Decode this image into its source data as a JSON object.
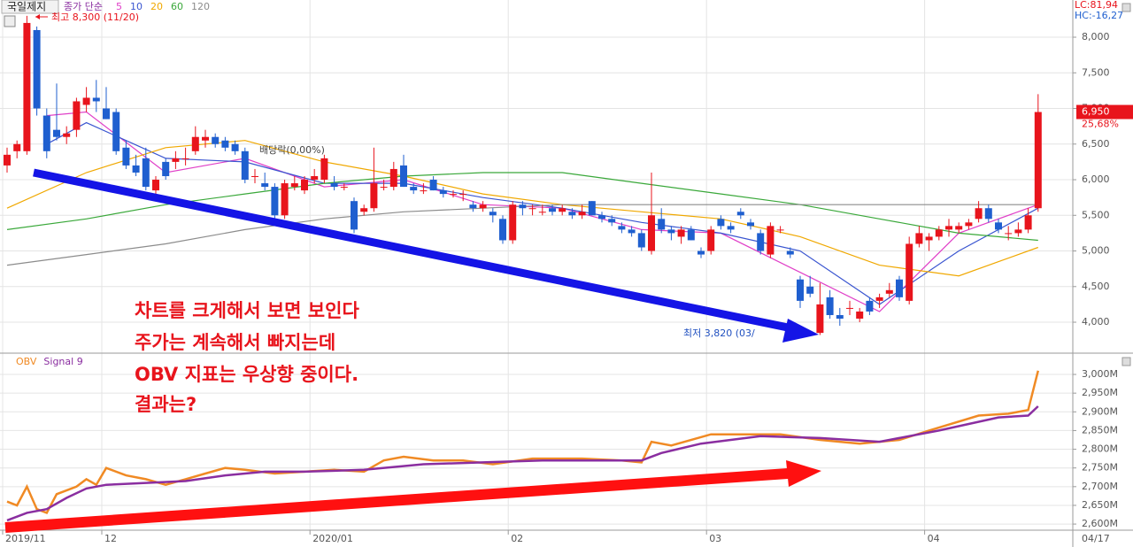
{
  "chart_data": [
    {
      "type": "candlestick",
      "title": "국일제지",
      "legend_prefix": "종가 단순",
      "up_color": "#e8141c",
      "down_color": "#1f5fcf",
      "ohlc": [
        [
          6200,
          6450,
          6100,
          6350
        ],
        [
          6400,
          6550,
          6300,
          6500
        ],
        [
          6400,
          8300,
          6350,
          8200
        ],
        [
          8100,
          8150,
          6900,
          7000
        ],
        [
          6900,
          7000,
          6300,
          6400
        ],
        [
          6700,
          7350,
          6550,
          6600
        ],
        [
          6600,
          6750,
          6500,
          6650
        ],
        [
          6700,
          7150,
          6600,
          7100
        ],
        [
          7050,
          7300,
          6950,
          7150
        ],
        [
          7150,
          7400,
          6950,
          7100
        ],
        [
          7000,
          7300,
          6850,
          6850
        ],
        [
          6950,
          7000,
          6350,
          6400
        ],
        [
          6450,
          6550,
          6150,
          6200
        ],
        [
          6200,
          6350,
          6050,
          6100
        ],
        [
          6300,
          6450,
          5850,
          5900
        ],
        [
          5850,
          6050,
          5800,
          6000
        ],
        [
          6250,
          6300,
          6000,
          6050
        ],
        [
          6250,
          6400,
          6150,
          6300
        ],
        [
          6300,
          6450,
          6200,
          6300
        ],
        [
          6400,
          6750,
          6350,
          6600
        ],
        [
          6550,
          6700,
          6450,
          6600
        ],
        [
          6600,
          6650,
          6450,
          6500
        ],
        [
          6550,
          6600,
          6400,
          6450
        ],
        [
          6500,
          6550,
          6350,
          6400
        ],
        [
          6400,
          6450,
          5950,
          6000
        ],
        [
          6050,
          6150,
          5950,
          6050
        ],
        [
          5950,
          6100,
          5850,
          5900
        ],
        [
          5900,
          5950,
          5450,
          5500
        ],
        [
          5500,
          6000,
          5450,
          5950
        ],
        [
          5900,
          6050,
          5850,
          5950
        ],
        [
          5850,
          6050,
          5800,
          6000
        ],
        [
          6000,
          6150,
          5950,
          6050
        ],
        [
          6000,
          6350,
          5950,
          6300
        ],
        [
          5950,
          6050,
          5850,
          5900
        ],
        [
          5900,
          5950,
          5850,
          5900
        ],
        [
          5700,
          5750,
          5250,
          5300
        ],
        [
          5550,
          5650,
          5500,
          5600
        ],
        [
          5600,
          6450,
          5550,
          5950
        ],
        [
          5900,
          6000,
          5850,
          5900
        ],
        [
          5900,
          6250,
          5850,
          6150
        ],
        [
          6200,
          6350,
          5900,
          5900
        ],
        [
          5900,
          5950,
          5800,
          5850
        ],
        [
          5850,
          5950,
          5800,
          5850
        ],
        [
          6000,
          6050,
          5850,
          5850
        ],
        [
          5850,
          5900,
          5750,
          5800
        ],
        [
          5800,
          5850,
          5750,
          5800
        ],
        [
          5800,
          5850,
          5700,
          5800
        ],
        [
          5650,
          5700,
          5550,
          5600
        ],
        [
          5600,
          5700,
          5550,
          5650
        ],
        [
          5550,
          5600,
          5400,
          5500
        ],
        [
          5450,
          5500,
          5100,
          5150
        ],
        [
          5150,
          5700,
          5100,
          5650
        ],
        [
          5650,
          5700,
          5500,
          5600
        ],
        [
          5600,
          5650,
          5500,
          5600
        ],
        [
          5550,
          5650,
          5500,
          5550
        ],
        [
          5600,
          5650,
          5500,
          5550
        ],
        [
          5550,
          5650,
          5500,
          5600
        ],
        [
          5550,
          5600,
          5450,
          5500
        ],
        [
          5500,
          5650,
          5450,
          5550
        ],
        [
          5700,
          5700,
          5500,
          5500
        ],
        [
          5500,
          5550,
          5400,
          5450
        ],
        [
          5450,
          5500,
          5350,
          5400
        ],
        [
          5350,
          5400,
          5250,
          5300
        ],
        [
          5300,
          5350,
          5200,
          5250
        ],
        [
          5250,
          5300,
          5000,
          5050
        ],
        [
          5000,
          6100,
          4950,
          5500
        ],
        [
          5450,
          5600,
          5250,
          5300
        ],
        [
          5300,
          5350,
          5150,
          5250
        ],
        [
          5200,
          5350,
          5100,
          5300
        ],
        [
          5300,
          5350,
          5150,
          5150
        ],
        [
          5000,
          5050,
          4900,
          4950
        ],
        [
          5000,
          5350,
          4950,
          5300
        ],
        [
          5450,
          5500,
          5300,
          5350
        ],
        [
          5350,
          5400,
          5250,
          5300
        ],
        [
          5550,
          5600,
          5450,
          5500
        ],
        [
          5400,
          5450,
          5300,
          5350
        ],
        [
          5250,
          5300,
          4950,
          5000
        ],
        [
          4950,
          5400,
          4900,
          5350
        ],
        [
          5300,
          5350,
          5250,
          5300
        ],
        [
          5000,
          5050,
          4900,
          4950
        ],
        [
          4600,
          4650,
          4200,
          4300
        ],
        [
          4500,
          4650,
          4350,
          4400
        ],
        [
          3850,
          4550,
          3820,
          4250
        ],
        [
          4350,
          4450,
          4050,
          4100
        ],
        [
          4100,
          4200,
          3950,
          4050
        ],
        [
          4200,
          4300,
          4100,
          4200
        ],
        [
          4050,
          4200,
          4000,
          4150
        ],
        [
          4300,
          4350,
          4100,
          4150
        ],
        [
          4300,
          4400,
          4200,
          4350
        ],
        [
          4400,
          4550,
          4350,
          4450
        ],
        [
          4600,
          4650,
          4300,
          4350
        ],
        [
          4300,
          5200,
          4250,
          5100
        ],
        [
          5100,
          5350,
          5050,
          5250
        ],
        [
          5150,
          5250,
          5000,
          5200
        ],
        [
          5200,
          5350,
          5150,
          5300
        ],
        [
          5300,
          5450,
          5200,
          5350
        ],
        [
          5300,
          5400,
          5250,
          5350
        ],
        [
          5350,
          5450,
          5300,
          5400
        ],
        [
          5450,
          5700,
          5400,
          5600
        ],
        [
          5600,
          5650,
          5400,
          5450
        ],
        [
          5400,
          5450,
          5250,
          5300
        ],
        [
          5250,
          5350,
          5150,
          5250
        ],
        [
          5250,
          5400,
          5200,
          5300
        ],
        [
          5300,
          5600,
          5250,
          5500
        ],
        [
          5600,
          7200,
          5550,
          6950
        ]
      ],
      "series": [
        {
          "name": "5",
          "color": "#e040c8",
          "x": [
            4,
            8,
            16,
            24,
            32,
            40,
            48,
            56,
            64,
            72,
            80,
            88,
            96,
            104
          ],
          "values": [
            6900,
            6950,
            6100,
            6300,
            5900,
            6000,
            5650,
            5600,
            5300,
            5250,
            4700,
            4150,
            5250,
            5650
          ]
        },
        {
          "name": "10",
          "color": "#3a55d0",
          "x": [
            4,
            8,
            16,
            24,
            32,
            40,
            48,
            56,
            64,
            72,
            80,
            88,
            96,
            104
          ],
          "values": [
            6500,
            6800,
            6300,
            6250,
            5950,
            5950,
            5750,
            5600,
            5400,
            5250,
            5000,
            4250,
            5000,
            5600
          ]
        },
        {
          "name": "20",
          "color": "#f0a800",
          "x": [
            0,
            8,
            16,
            24,
            32,
            40,
            48,
            56,
            64,
            72,
            80,
            88,
            96,
            104
          ],
          "values": [
            5600,
            6100,
            6450,
            6550,
            6250,
            6050,
            5800,
            5650,
            5550,
            5450,
            5200,
            4800,
            4650,
            5050
          ]
        },
        {
          "name": "60",
          "color": "#3aa83a",
          "x": [
            0,
            8,
            16,
            24,
            32,
            40,
            48,
            56,
            64,
            72,
            80,
            88,
            96,
            104
          ],
          "values": [
            5300,
            5450,
            5650,
            5800,
            5950,
            6050,
            6100,
            6100,
            5950,
            5800,
            5650,
            5450,
            5250,
            5150
          ]
        },
        {
          "name": "120",
          "color": "#8c8c8c",
          "x": [
            0,
            8,
            16,
            24,
            32,
            40,
            48,
            56,
            64,
            72,
            80,
            88,
            96,
            104
          ],
          "values": [
            4800,
            4950,
            5100,
            5300,
            5450,
            5550,
            5600,
            5650,
            5650,
            5650,
            5650,
            5650,
            5650,
            5650
          ]
        }
      ],
      "xlim": [
        -0.714,
        107.5
      ],
      "xticks": [
        {
          "value": 0,
          "label": "2019/11"
        },
        {
          "value": 10,
          "label": "12"
        },
        {
          "value": 31,
          "label": "2020/01"
        },
        {
          "value": 51,
          "label": "02"
        },
        {
          "value": 71,
          "label": "03"
        },
        {
          "value": 93,
          "label": "04"
        }
      ],
      "last_date": "04/17",
      "ylim": [
        3578,
        8522
      ],
      "yticks": [
        {
          "value": 4000,
          "label": "4,000"
        },
        {
          "value": 4500,
          "label": "4,500"
        },
        {
          "value": 5000,
          "label": "5,000"
        },
        {
          "value": 5500,
          "label": "5,500"
        },
        {
          "value": 6000,
          "label": "6,000"
        },
        {
          "value": 6500,
          "label": "6,500"
        },
        {
          "value": 7000,
          "label": "7,000"
        },
        {
          "value": 7500,
          "label": "7,500"
        },
        {
          "value": 8000,
          "label": "8,000"
        }
      ],
      "grid": true,
      "annotations": {
        "high": "최고 8,300 (11/20)",
        "dividend": "배당락(0,00%)",
        "low": "최저 3,820 (03/",
        "lc": "LC:81,94",
        "hc": "HC:-16,27",
        "price_tag": "6,950",
        "change": "25,68%"
      }
    },
    {
      "type": "line",
      "series": [
        {
          "name": "OBV",
          "color": "#f08a24",
          "x": [
            0,
            1,
            2,
            3,
            4,
            5,
            7,
            8,
            9,
            10,
            12,
            14,
            16,
            18,
            20,
            22,
            24,
            27,
            30,
            33,
            36,
            38,
            40,
            43,
            46,
            49,
            53,
            58,
            62,
            64,
            65,
            67,
            71,
            75,
            78,
            82,
            86,
            90,
            93,
            98,
            101,
            103,
            104
          ],
          "values": [
            2660,
            2650,
            2700,
            2640,
            2630,
            2680,
            2700,
            2720,
            2705,
            2750,
            2730,
            2720,
            2705,
            2720,
            2735,
            2750,
            2745,
            2735,
            2740,
            2745,
            2740,
            2770,
            2780,
            2770,
            2770,
            2760,
            2775,
            2775,
            2770,
            2765,
            2820,
            2810,
            2840,
            2840,
            2840,
            2825,
            2815,
            2825,
            2850,
            2890,
            2895,
            2905,
            3010
          ]
        },
        {
          "name": "Signal 9",
          "color": "#8a2ea0",
          "x": [
            0,
            2,
            4,
            6,
            8,
            10,
            14,
            18,
            22,
            26,
            30,
            36,
            42,
            48,
            54,
            60,
            64,
            66,
            70,
            76,
            82,
            88,
            94,
            100,
            103,
            104
          ],
          "values": [
            2610,
            2630,
            2640,
            2670,
            2695,
            2705,
            2710,
            2715,
            2730,
            2740,
            2740,
            2745,
            2760,
            2765,
            2770,
            2770,
            2770,
            2790,
            2815,
            2835,
            2830,
            2820,
            2850,
            2885,
            2890,
            2915
          ]
        }
      ],
      "xlim": [
        -0.714,
        107.5
      ],
      "ylim": [
        2586,
        3054.5
      ],
      "yticks": [
        {
          "value": 2600,
          "label": "2,600M"
        },
        {
          "value": 2650,
          "label": "2,650M"
        },
        {
          "value": 2700,
          "label": "2,700M"
        },
        {
          "value": 2750,
          "label": "2,750M"
        },
        {
          "value": 2800,
          "label": "2,800M"
        },
        {
          "value": 2850,
          "label": "2,850M"
        },
        {
          "value": 2900,
          "label": "2,900M"
        },
        {
          "value": 2950,
          "label": "2,950M"
        },
        {
          "value": 3000,
          "label": "3,000M"
        }
      ],
      "grid": true
    }
  ],
  "overlay_text": [
    "차트를 크게해서 보면 보인다",
    "주가는 계속해서 빠지는데",
    "OBV 지표는 우상향 중이다.",
    "결과는?"
  ]
}
